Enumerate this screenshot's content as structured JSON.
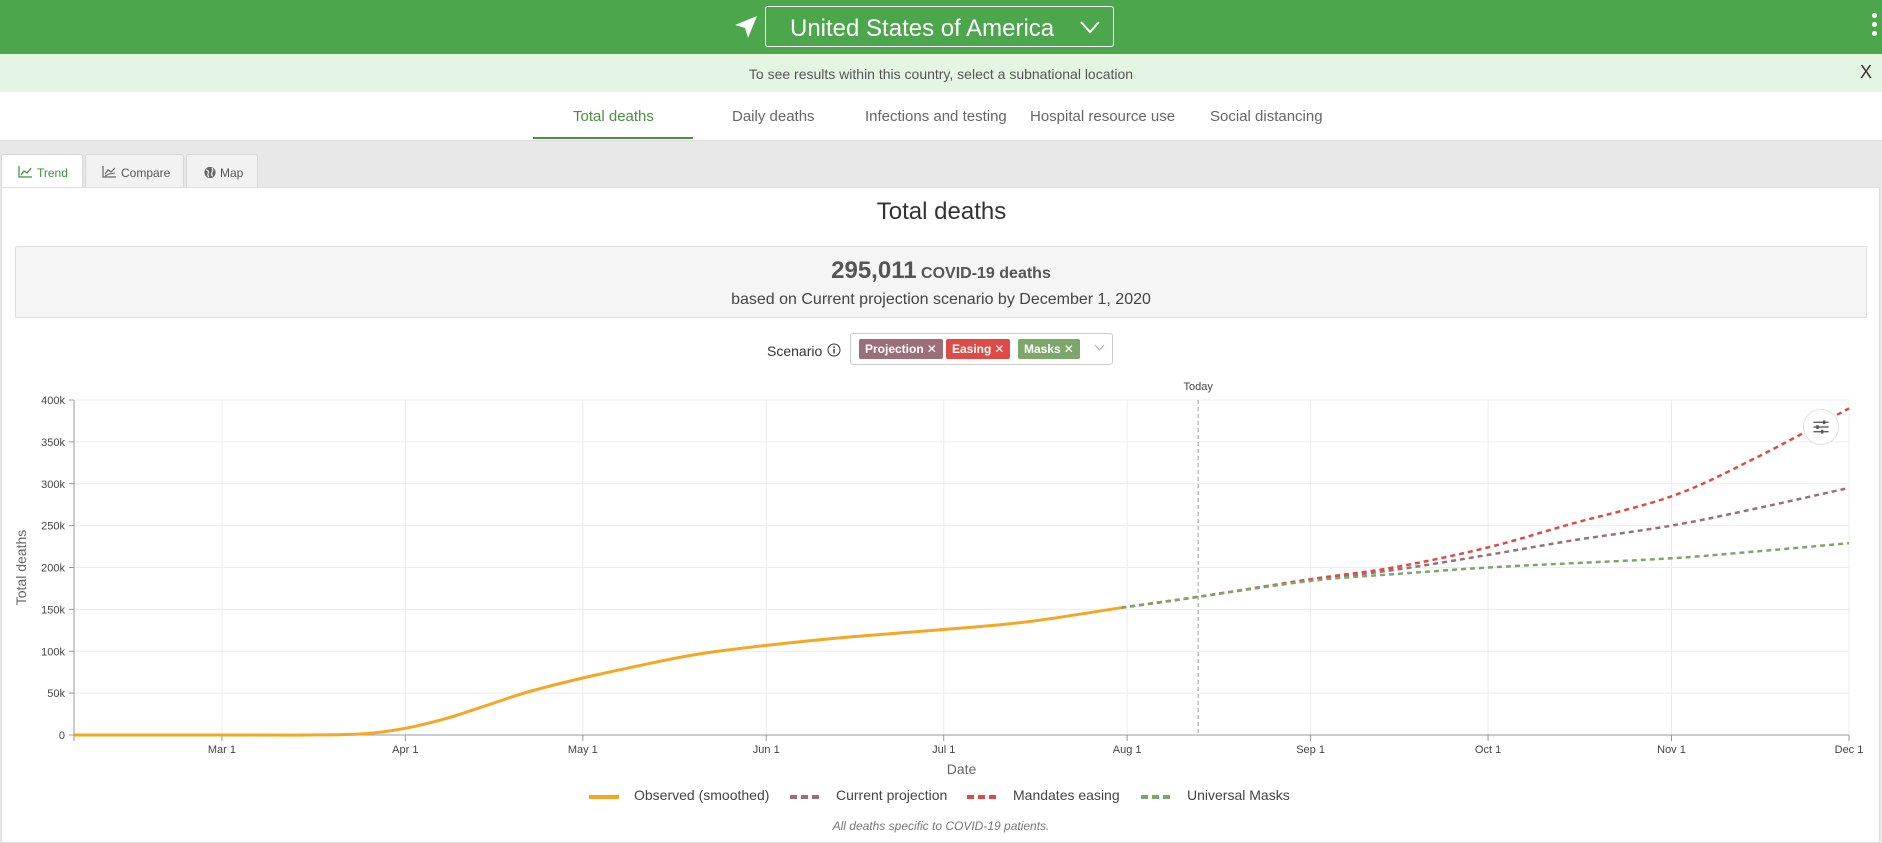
{
  "header": {
    "location_icon": "location-arrow-icon",
    "country": "United States of America",
    "menu_icon": "kebab-menu-icon"
  },
  "notice": {
    "text": "To see results within this country, select a subnational location",
    "close": "X"
  },
  "tabs": [
    {
      "label": "Total deaths",
      "active": true
    },
    {
      "label": "Daily deaths"
    },
    {
      "label": "Infections and testing"
    },
    {
      "label": "Hospital resource use"
    },
    {
      "label": "Social distancing"
    }
  ],
  "view_tabs": [
    {
      "label": "Trend",
      "icon": "line-chart-icon",
      "active": true
    },
    {
      "label": "Compare",
      "icon": "compare-chart-icon"
    },
    {
      "label": "Map",
      "icon": "globe-icon"
    }
  ],
  "panel": {
    "title": "Total deaths",
    "summary": {
      "number": "295,011",
      "unit": "COVID-19 deaths",
      "line2": "based on Current projection scenario by December 1, 2020"
    }
  },
  "scenario": {
    "label": "Scenario",
    "chips": [
      {
        "label": "Projection",
        "color": "#9c6e7a"
      },
      {
        "label": "Easing",
        "color": "#de4a46"
      },
      {
        "label": "Masks",
        "color": "#7da66b"
      }
    ]
  },
  "colors": {
    "observed": "#f5a623",
    "projection": "#9c6e7a",
    "easing": "#de4a46",
    "masks": "#7da66b",
    "header_green": "#4ca64c"
  },
  "chart_data": {
    "type": "line",
    "title": "Total deaths",
    "xlabel": "Date",
    "ylabel": "Total deaths",
    "x_tick_labels": [
      "Mar 1",
      "Apr 1",
      "May 1",
      "Jun 1",
      "Jul 1",
      "Aug 1",
      "Sep 1",
      "Oct 1",
      "Nov 1",
      "Dec 1"
    ],
    "y_tick_labels": [
      "0",
      "50k",
      "100k",
      "150k",
      "200k",
      "250k",
      "300k",
      "350k",
      "400k"
    ],
    "ylim": [
      0,
      400000
    ],
    "xlim": [
      "2020-02-05",
      "2020-12-01"
    ],
    "today": {
      "label": "Today",
      "date": "2020-08-13"
    },
    "grid": true,
    "legend": "bottom",
    "footnote": "All deaths specific to COVID-19 patients.",
    "series": [
      {
        "name": "Observed (smoothed)",
        "style": "solid",
        "x": [
          "2020-02-05",
          "2020-03-01",
          "2020-03-15",
          "2020-03-25",
          "2020-04-01",
          "2020-04-08",
          "2020-04-15",
          "2020-04-22",
          "2020-05-01",
          "2020-05-10",
          "2020-05-20",
          "2020-06-01",
          "2020-06-15",
          "2020-07-01",
          "2020-07-15",
          "2020-07-31"
        ],
        "y": [
          0,
          0,
          0,
          1500,
          8000,
          20000,
          36000,
          52000,
          68000,
          82000,
          96000,
          107000,
          117000,
          126000,
          135000,
          152000
        ]
      },
      {
        "name": "Current projection",
        "style": "dashed",
        "x": [
          "2020-07-31",
          "2020-08-13",
          "2020-09-01",
          "2020-09-15",
          "2020-10-01",
          "2020-10-15",
          "2020-11-01",
          "2020-11-15",
          "2020-12-01"
        ],
        "y": [
          152000,
          165000,
          185000,
          197000,
          215000,
          232000,
          250000,
          270000,
          295000
        ]
      },
      {
        "name": "Mandates easing",
        "style": "dashed",
        "x": [
          "2020-07-31",
          "2020-08-13",
          "2020-09-01",
          "2020-09-15",
          "2020-10-01",
          "2020-10-15",
          "2020-11-01",
          "2020-11-15",
          "2020-12-01"
        ],
        "y": [
          152000,
          165000,
          186000,
          200000,
          224000,
          252000,
          285000,
          330000,
          390000
        ]
      },
      {
        "name": "Universal Masks",
        "style": "dashed",
        "x": [
          "2020-07-31",
          "2020-08-13",
          "2020-09-01",
          "2020-09-15",
          "2020-10-01",
          "2020-10-15",
          "2020-11-01",
          "2020-11-15",
          "2020-12-01"
        ],
        "y": [
          152000,
          165000,
          184000,
          192000,
          200000,
          205000,
          211000,
          219000,
          229000
        ]
      }
    ]
  }
}
